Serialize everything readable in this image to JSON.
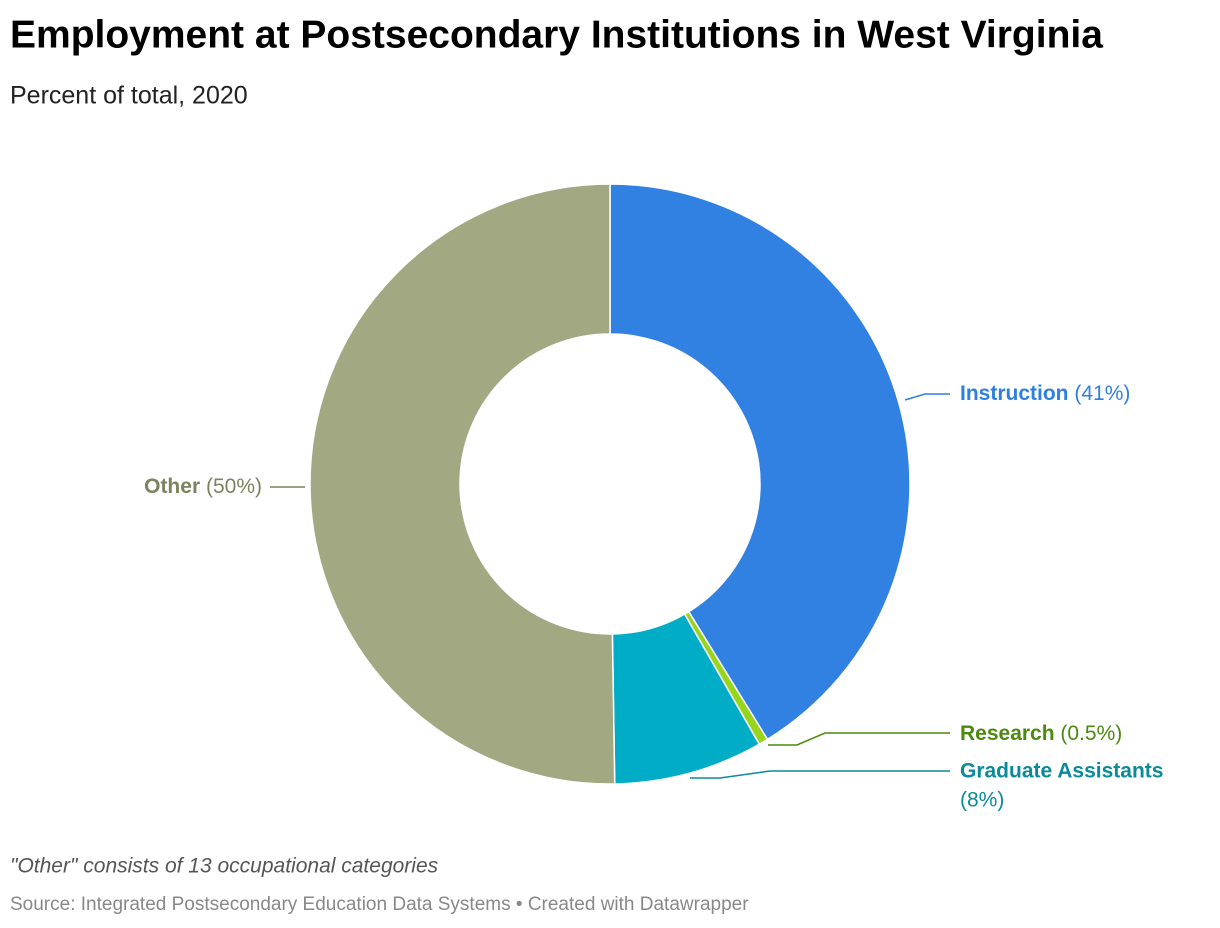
{
  "chart_data": {
    "type": "donut",
    "title": "Employment at Postsecondary Institutions in West Virginia",
    "subtitle": "Percent of total, 2020",
    "categories": [
      "Instruction",
      "Research",
      "Graduate Assistants",
      "Other"
    ],
    "values": [
      41,
      0.5,
      8,
      50
    ],
    "value_labels": [
      "(41%)",
      "(0.5%)",
      "(8%)",
      "(50%)"
    ],
    "colors": [
      "#3181e3",
      "#97d41b",
      "#00acc6",
      "#a2a882"
    ],
    "label_colors": [
      "#2f7fe0",
      "#4b8a0e",
      "#0a8a9a",
      "#7d825f"
    ],
    "note": "\"Other\" consists of 13 occupational categories",
    "source": "Source: Integrated Postsecondary Education Data Systems • Created with Datawrapper"
  }
}
